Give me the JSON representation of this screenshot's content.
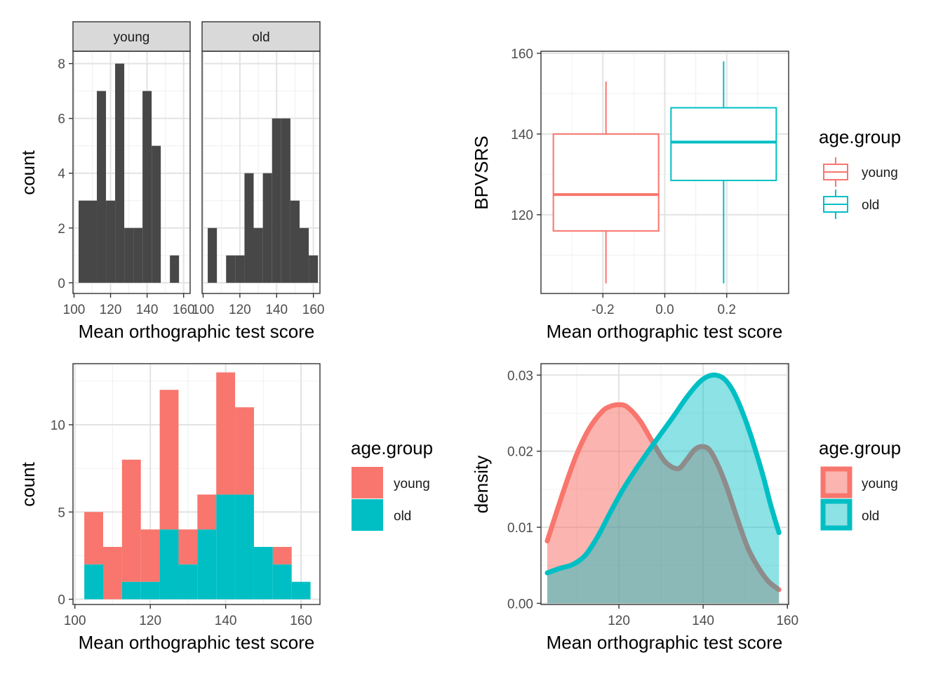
{
  "chart_data": [
    {
      "id": "facet-histogram",
      "type": "bar",
      "facets": [
        {
          "label": "young",
          "bins": [
            {
              "x0": 102.5,
              "x1": 107.5,
              "count": 3
            },
            {
              "x0": 107.5,
              "x1": 112.5,
              "count": 3
            },
            {
              "x0": 112.5,
              "x1": 117.5,
              "count": 7
            },
            {
              "x0": 117.5,
              "x1": 122.5,
              "count": 3
            },
            {
              "x0": 122.5,
              "x1": 127.5,
              "count": 8
            },
            {
              "x0": 127.5,
              "x1": 132.5,
              "count": 2
            },
            {
              "x0": 132.5,
              "x1": 137.5,
              "count": 2
            },
            {
              "x0": 137.5,
              "x1": 142.5,
              "count": 7
            },
            {
              "x0": 142.5,
              "x1": 147.5,
              "count": 5
            },
            {
              "x0": 152.5,
              "x1": 157.5,
              "count": 1
            }
          ]
        },
        {
          "label": "old",
          "bins": [
            {
              "x0": 102.5,
              "x1": 107.5,
              "count": 2
            },
            {
              "x0": 107.5,
              "x1": 112.5,
              "count": 0
            },
            {
              "x0": 112.5,
              "x1": 117.5,
              "count": 1
            },
            {
              "x0": 117.5,
              "x1": 122.5,
              "count": 1
            },
            {
              "x0": 122.5,
              "x1": 127.5,
              "count": 4
            },
            {
              "x0": 127.5,
              "x1": 132.5,
              "count": 2
            },
            {
              "x0": 132.5,
              "x1": 137.5,
              "count": 4
            },
            {
              "x0": 137.5,
              "x1": 142.5,
              "count": 6
            },
            {
              "x0": 142.5,
              "x1": 147.5,
              "count": 6
            },
            {
              "x0": 147.5,
              "x1": 152.5,
              "count": 3
            },
            {
              "x0": 152.5,
              "x1": 157.5,
              "count": 2
            },
            {
              "x0": 157.5,
              "x1": 162.5,
              "count": 1
            }
          ]
        }
      ],
      "xlabel": "Mean orthographic test score",
      "ylabel": "count",
      "xlim": [
        100,
        163
      ],
      "ylim": [
        0,
        8.4
      ],
      "xticks": [
        100,
        120,
        140,
        160
      ],
      "yticks": [
        0,
        2,
        4,
        6,
        8
      ],
      "bar_color": "#474747"
    },
    {
      "id": "boxplot",
      "type": "box",
      "series": [
        {
          "name": "young",
          "x": -0.19,
          "x0": -0.36,
          "x1": -0.02,
          "whisker_low": 103,
          "q1": 116,
          "median": 125,
          "q3": 140,
          "whisker_high": 153,
          "color": "#F8766D"
        },
        {
          "name": "old",
          "x": 0.19,
          "x0": 0.02,
          "x1": 0.36,
          "whisker_low": 103,
          "q1": 128.5,
          "median": 138,
          "q3": 146.5,
          "whisker_high": 158,
          "color": "#00BFC4"
        }
      ],
      "xlabel": "Mean orthographic test score",
      "ylabel": "BPVSRS",
      "xlim": [
        -0.4,
        0.4
      ],
      "ylim": [
        100.5,
        160.5
      ],
      "xticks": [
        -0.2,
        0.0,
        0.2
      ],
      "xtick_labels": [
        "-0.2",
        "0.0",
        "0.2"
      ],
      "yticks": [
        120,
        140,
        160
      ],
      "legend": {
        "title": "age.group",
        "entries": [
          "young",
          "old"
        ]
      }
    },
    {
      "id": "stacked-histogram",
      "type": "bar",
      "stacked": true,
      "bins": [
        {
          "x0": 102.5,
          "x1": 107.5,
          "old": 2,
          "young": 3
        },
        {
          "x0": 107.5,
          "x1": 112.5,
          "old": 0,
          "young": 3
        },
        {
          "x0": 112.5,
          "x1": 117.5,
          "old": 1,
          "young": 7
        },
        {
          "x0": 117.5,
          "x1": 122.5,
          "old": 1,
          "young": 3
        },
        {
          "x0": 122.5,
          "x1": 127.5,
          "old": 4,
          "young": 8
        },
        {
          "x0": 127.5,
          "x1": 132.5,
          "old": 2,
          "young": 2
        },
        {
          "x0": 132.5,
          "x1": 137.5,
          "old": 4,
          "young": 2
        },
        {
          "x0": 137.5,
          "x1": 142.5,
          "old": 6,
          "young": 7
        },
        {
          "x0": 142.5,
          "x1": 147.5,
          "old": 6,
          "young": 5
        },
        {
          "x0": 147.5,
          "x1": 152.5,
          "old": 3,
          "young": 0
        },
        {
          "x0": 152.5,
          "x1": 157.5,
          "old": 2,
          "young": 1
        },
        {
          "x0": 157.5,
          "x1": 162.5,
          "old": 1,
          "young": 0
        }
      ],
      "xlabel": "Mean orthographic test score",
      "ylabel": "count",
      "xlim": [
        99.5,
        165
      ],
      "ylim": [
        -0.3,
        13.5
      ],
      "xticks": [
        100,
        120,
        140,
        160
      ],
      "yticks": [
        0,
        5,
        10
      ],
      "colors": {
        "young": "#F8766D",
        "old": "#00BFC4"
      },
      "legend": {
        "title": "age.group",
        "entries": [
          "young",
          "old"
        ]
      }
    },
    {
      "id": "density",
      "type": "area",
      "series": [
        {
          "name": "young",
          "color": "#F8766D",
          "x": [
            103,
            107,
            110,
            113,
            116,
            118,
            120,
            122,
            125,
            128,
            131,
            134,
            136,
            138,
            140,
            142,
            145,
            148,
            151,
            155,
            158
          ],
          "y": [
            0.0082,
            0.015,
            0.0196,
            0.023,
            0.0252,
            0.0259,
            0.0261,
            0.0258,
            0.024,
            0.0212,
            0.0186,
            0.0177,
            0.0188,
            0.0202,
            0.0206,
            0.0198,
            0.0162,
            0.0113,
            0.0068,
            0.0032,
            0.0018
          ]
        },
        {
          "name": "old",
          "color": "#00BFC4",
          "x": [
            103,
            106,
            109,
            112,
            115,
            118,
            121,
            124,
            127,
            130,
            133,
            136,
            139,
            141,
            143,
            145,
            147,
            149,
            151,
            154,
            156,
            158
          ],
          "y": [
            0.004,
            0.0046,
            0.0051,
            0.0063,
            0.0088,
            0.012,
            0.015,
            0.0176,
            0.02,
            0.0223,
            0.0246,
            0.027,
            0.029,
            0.0298,
            0.03,
            0.0295,
            0.028,
            0.0256,
            0.0226,
            0.0172,
            0.013,
            0.0093
          ]
        }
      ],
      "xlabel": "Mean orthographic test score",
      "ylabel": "density",
      "xlim": [
        101.5,
        160.3
      ],
      "ylim": [
        -0.00015,
        0.0315
      ],
      "xticks": [
        120,
        140,
        160
      ],
      "yticks": [
        0.0,
        0.01,
        0.02,
        0.03
      ],
      "ytick_labels": [
        "0.00",
        "0.01",
        "0.02",
        "0.03"
      ],
      "overlap_color": "#8C8C8C",
      "legend": {
        "title": "age.group",
        "entries": [
          "young",
          "old"
        ]
      }
    }
  ]
}
